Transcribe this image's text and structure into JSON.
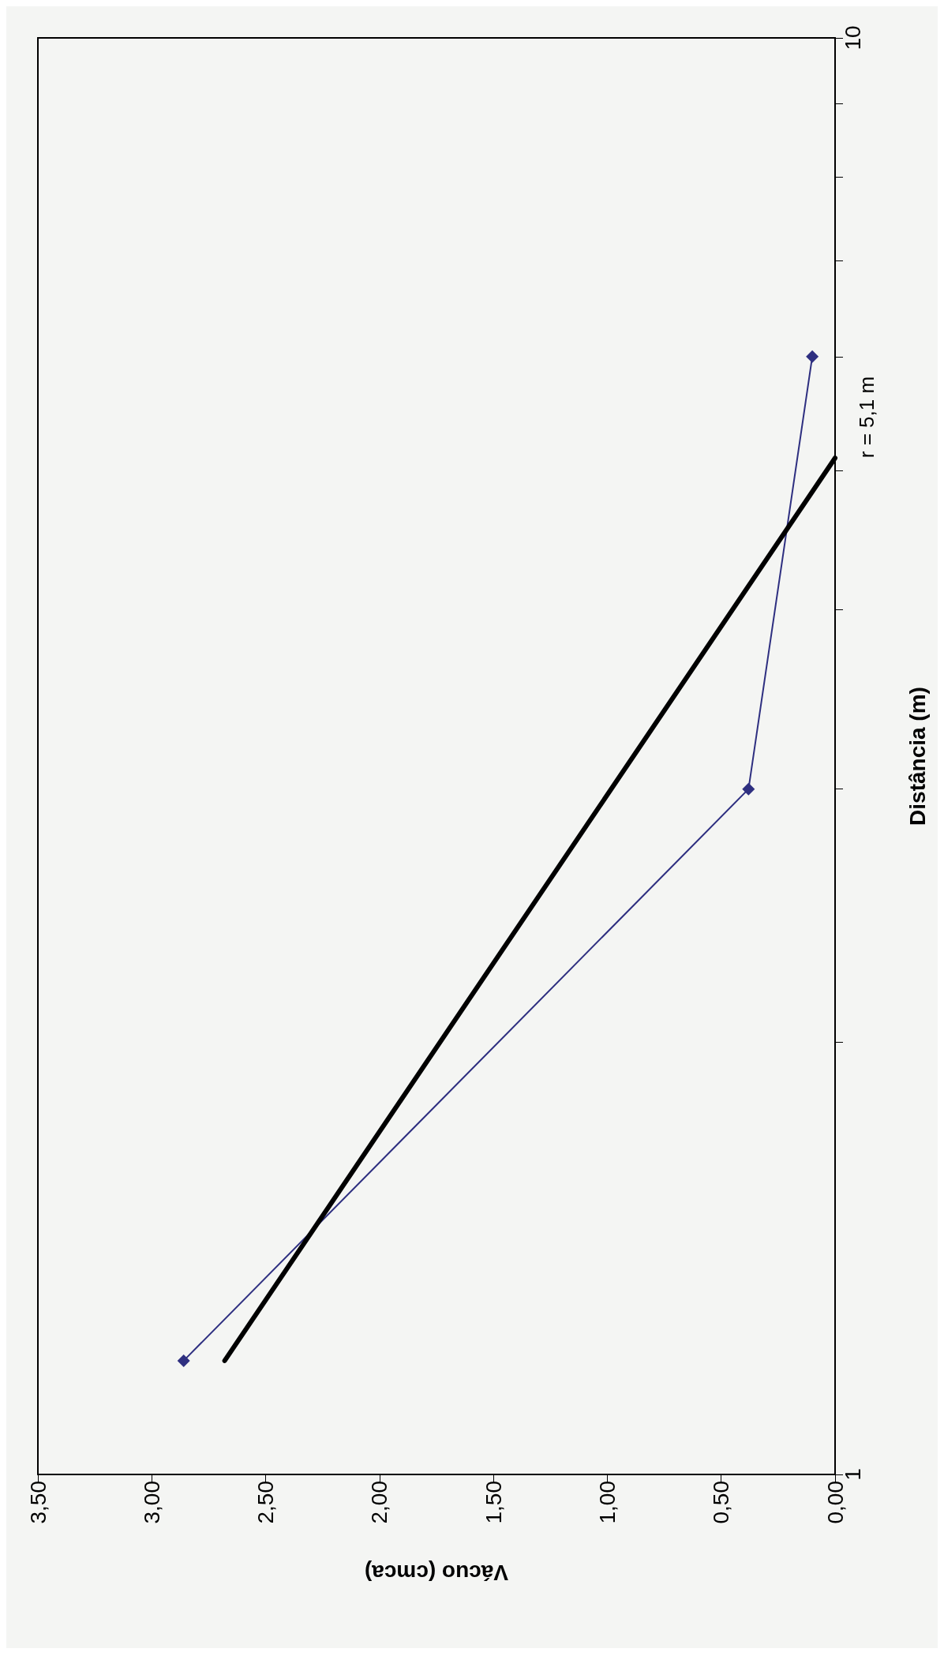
{
  "chart_data": {
    "type": "line",
    "xlabel": "Vácuo (cmca)",
    "ylabel": "Distância (m)",
    "log": "y",
    "xlim": [
      3.5,
      0
    ],
    "xticks": [
      {
        "value": 3.5,
        "label": "3,50"
      },
      {
        "value": 3,
        "label": "3,00"
      },
      {
        "value": 2.5,
        "label": "2,50"
      },
      {
        "value": 2,
        "label": "2,00"
      },
      {
        "value": 1.5,
        "label": "1,50"
      },
      {
        "value": 1,
        "label": "1,00"
      },
      {
        "value": 0.5,
        "label": "0,50"
      },
      {
        "value": 0,
        "label": "0,00"
      }
    ],
    "ylim": [
      1,
      10
    ],
    "yticks": [
      1,
      {
        "value": 2,
        "label": null
      },
      {
        "value": 3,
        "label": null
      },
      {
        "value": 4,
        "label": null
      },
      {
        "value": 5,
        "label": null
      },
      {
        "value": 6,
        "label": null
      },
      {
        "value": 7,
        "label": null
      },
      {
        "value": 8,
        "label": null
      },
      {
        "value": 9,
        "label": null
      },
      10
    ],
    "grid": false,
    "marker": "diamond",
    "series": [
      {
        "color": "#2e2f80",
        "x": [
          2.86,
          0.38,
          0.1
        ],
        "values": [
          1.2,
          3.0,
          6.0
        ]
      },
      {
        "color": "#000000",
        "marker": "none",
        "x": [
          2.68,
          0
        ],
        "values": [
          1.2,
          5.1
        ]
      }
    ],
    "annotations": [
      {
        "text": "r = 5,1 m",
        "x": 0,
        "y": 5.1
      }
    ]
  }
}
